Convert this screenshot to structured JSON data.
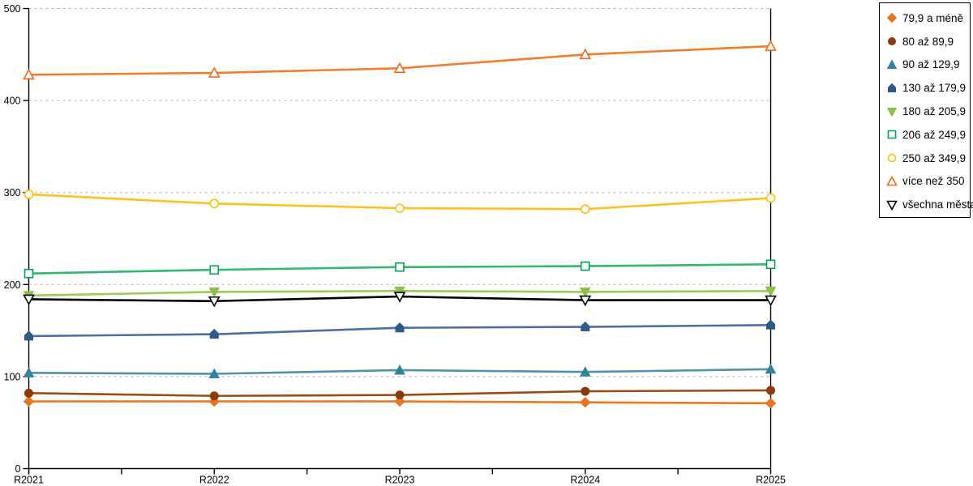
{
  "chart_data": {
    "type": "line",
    "title": "",
    "xlabel": "",
    "ylabel": "",
    "categories": [
      "R2021",
      "R2022",
      "R2023",
      "R2024",
      "R2025"
    ],
    "ylim": [
      0,
      500
    ],
    "yticks": [
      0,
      100,
      200,
      300,
      400,
      500
    ],
    "grid": "horizontal-dashed",
    "gridline_color": "#b3b3b3",
    "axis_color": "#000000",
    "legend_position": "top-right",
    "series": [
      {
        "name": "79,9 a méně",
        "marker": "diamond",
        "fill": "filled",
        "color": "#E8751F",
        "line_color": "#E8791F",
        "values": [
          73,
          73,
          73,
          72,
          71
        ]
      },
      {
        "name": "80 až 89,9",
        "marker": "circle",
        "fill": "filled",
        "color": "#8B3A0B",
        "line_color": "#9C4A14",
        "values": [
          82,
          79,
          80,
          84,
          85
        ]
      },
      {
        "name": "90 až 129,9",
        "marker": "triangle-up",
        "fill": "filled",
        "color": "#31849B",
        "line_color": "#4E93A6",
        "values": [
          104,
          103,
          107,
          105,
          108
        ]
      },
      {
        "name": "130 až 179,9",
        "marker": "pentagon",
        "fill": "filled",
        "color": "#2D5A87",
        "line_color": "#4A6FA5",
        "values": [
          144,
          146,
          153,
          154,
          156
        ]
      },
      {
        "name": "180 až 205,9",
        "marker": "triangle-down",
        "fill": "filled",
        "color": "#8CC047",
        "line_color": "#9CCB55",
        "values": [
          188,
          192,
          193,
          192,
          193
        ]
      },
      {
        "name": "206 až 249,9",
        "marker": "square",
        "fill": "open",
        "color": "#00A550",
        "line_color": "#35B573",
        "values": [
          212,
          216,
          219,
          220,
          222
        ]
      },
      {
        "name": "250 až 349,9",
        "marker": "circle",
        "fill": "open",
        "color": "#FFC000",
        "line_color": "#FFC01E",
        "values": [
          298,
          288,
          283,
          282,
          294
        ]
      },
      {
        "name": "více než 350",
        "marker": "triangle-up",
        "fill": "open",
        "color": "#ED6B21",
        "line_color": "#F07E2E",
        "values": [
          428,
          430,
          435,
          450,
          459
        ]
      },
      {
        "name": "všechna města",
        "marker": "triangle-down",
        "fill": "open",
        "color": "#000000",
        "line_color": "#000000",
        "values": [
          184,
          182,
          187,
          183,
          183
        ]
      }
    ]
  }
}
